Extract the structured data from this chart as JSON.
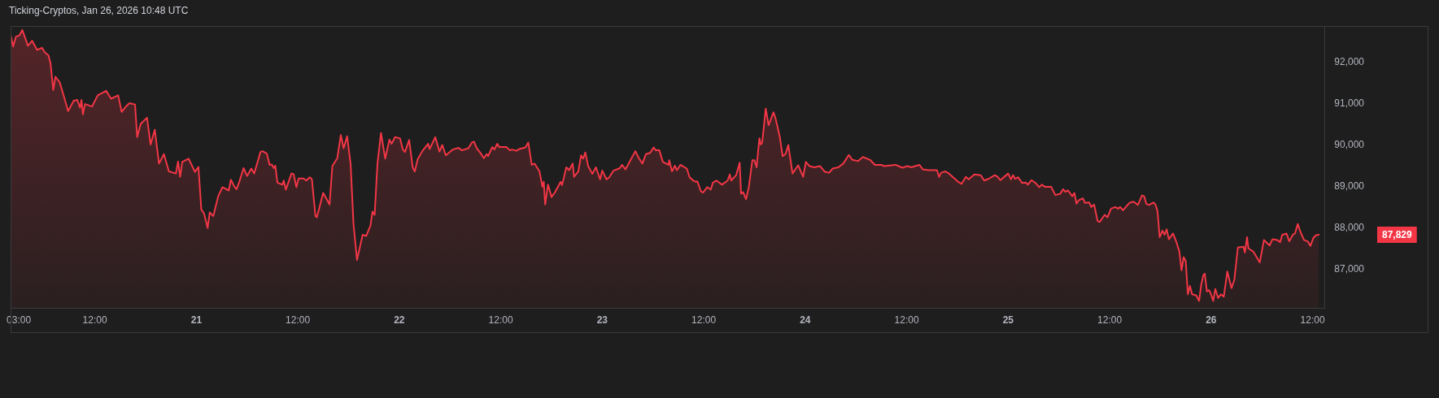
{
  "chart_data": {
    "type": "area",
    "title": "Ticking-Cryptos, Jan 26, 2026 10:48 UTC",
    "color": "#f23645",
    "x": [
      "2026-01-20T02:05",
      "2026-01-20T02:20",
      "2026-01-20T02:40",
      "2026-01-20T03:05",
      "2026-01-20T03:25",
      "2026-01-20T03:40",
      "2026-01-20T04:05",
      "2026-01-20T04:35",
      "2026-01-20T05:10",
      "2026-01-20T05:45",
      "2026-01-20T06:05",
      "2026-01-20T06:30",
      "2026-01-20T06:45",
      "2026-01-20T07:05",
      "2026-01-20T07:20",
      "2026-01-20T07:50",
      "2026-01-20T08:25",
      "2026-01-20T08:50",
      "2026-01-20T09:30",
      "2026-01-20T09:55",
      "2026-01-20T10:15",
      "2026-01-20T10:25",
      "2026-01-20T10:35",
      "2026-01-20T10:50",
      "2026-01-20T11:40",
      "2026-01-20T12:20",
      "2026-01-20T13:20",
      "2026-01-20T13:55",
      "2026-01-20T14:45",
      "2026-01-20T15:10",
      "2026-01-20T15:40",
      "2026-01-20T16:05",
      "2026-01-20T16:45",
      "2026-01-20T17:00",
      "2026-01-20T17:25",
      "2026-01-20T18:10",
      "2026-01-20T18:35",
      "2026-01-20T19:05",
      "2026-01-20T19:35",
      "2026-01-20T20:10",
      "2026-01-20T20:45",
      "2026-01-20T21:35",
      "2026-01-20T21:50",
      "2026-01-20T22:05",
      "2026-01-20T22:20",
      "2026-01-20T23:05",
      "2026-01-20T23:50",
      "2026-01-21T00:15",
      "2026-01-21T00:35",
      "2026-01-21T00:55",
      "2026-01-21T01:20",
      "2026-01-21T01:35",
      "2026-01-21T02:00",
      "2026-01-21T02:35",
      "2026-01-21T03:05",
      "2026-01-21T03:50",
      "2026-01-21T04:05",
      "2026-01-21T04:30",
      "2026-01-21T04:45",
      "2026-01-21T05:05",
      "2026-01-21T05:35",
      "2026-01-21T06:00",
      "2026-01-21T06:30",
      "2026-01-21T06:50",
      "2026-01-21T07:05",
      "2026-01-21T07:35",
      "2026-01-21T07:50",
      "2026-01-21T08:20",
      "2026-01-21T08:40",
      "2026-01-21T08:55",
      "2026-01-21T09:10",
      "2026-01-21T09:20",
      "2026-01-21T09:35",
      "2026-01-21T10:10",
      "2026-01-21T10:20",
      "2026-01-21T10:35",
      "2026-01-21T11:15",
      "2026-01-21T11:30",
      "2026-01-21T11:50",
      "2026-01-21T12:05",
      "2026-01-21T12:40",
      "2026-01-21T13:00",
      "2026-01-21T13:25",
      "2026-01-21T13:40",
      "2026-01-21T14:05",
      "2026-01-21T14:15",
      "2026-01-21T15:00",
      "2026-01-21T15:45",
      "2026-01-21T16:05",
      "2026-01-21T16:40",
      "2026-01-21T17:05",
      "2026-01-21T17:25",
      "2026-01-21T17:50",
      "2026-01-21T18:15",
      "2026-01-21T18:35",
      "2026-01-21T19:00",
      "2026-01-21T19:40",
      "2026-01-21T20:05",
      "2026-01-21T20:35",
      "2026-01-21T20:50",
      "2026-01-21T21:05",
      "2026-01-21T21:25",
      "2026-01-21T21:50",
      "2026-01-21T22:20",
      "2026-01-21T22:50",
      "2026-01-21T23:05",
      "2026-01-21T23:30",
      "2026-01-22T00:05",
      "2026-01-22T00:25",
      "2026-01-22T00:40",
      "2026-01-22T01:10",
      "2026-01-22T01:35",
      "2026-01-22T01:50",
      "2026-01-22T02:10",
      "2026-01-22T02:45",
      "2026-01-22T03:25",
      "2026-01-22T03:35",
      "2026-01-22T04:15",
      "2026-01-22T04:45",
      "2026-01-22T05:05",
      "2026-01-22T05:30",
      "2026-01-22T06:20",
      "2026-01-22T07:00",
      "2026-01-22T07:25",
      "2026-01-22T08:10",
      "2026-01-22T08:35",
      "2026-01-22T08:50",
      "2026-01-22T09:10",
      "2026-01-22T09:35",
      "2026-01-22T10:00",
      "2026-01-22T10:20",
      "2026-01-22T10:30",
      "2026-01-22T11:00",
      "2026-01-22T11:15",
      "2026-01-22T11:35",
      "2026-01-22T11:50",
      "2026-01-22T12:40",
      "2026-01-22T13:05",
      "2026-01-22T13:20",
      "2026-01-22T13:50",
      "2026-01-22T14:10",
      "2026-01-22T14:55",
      "2026-01-22T15:15",
      "2026-01-22T15:40",
      "2026-01-22T16:00",
      "2026-01-22T16:35",
      "2026-01-22T16:55",
      "2026-01-22T17:05",
      "2026-01-22T17:15",
      "2026-01-22T17:35",
      "2026-01-22T18:00",
      "2026-01-22T18:25",
      "2026-01-22T19:05",
      "2026-01-22T19:15",
      "2026-01-22T19:45",
      "2026-01-22T20:05",
      "2026-01-22T20:30",
      "2026-01-22T20:40",
      "2026-01-22T21:10",
      "2026-01-22T21:30",
      "2026-01-22T21:45",
      "2026-01-22T22:00",
      "2026-01-22T22:20",
      "2026-01-22T22:50",
      "2026-01-22T23:15",
      "2026-01-22T23:45",
      "2026-01-23T00:00",
      "2026-01-23T00:30",
      "2026-01-23T00:50",
      "2026-01-23T01:20",
      "2026-01-23T02:05",
      "2026-01-23T02:20",
      "2026-01-23T02:45",
      "2026-01-23T03:20",
      "2026-01-23T03:55",
      "2026-01-23T04:20",
      "2026-01-23T04:45",
      "2026-01-23T05:10",
      "2026-01-23T05:40",
      "2026-01-23T06:05",
      "2026-01-23T06:20",
      "2026-01-23T06:45",
      "2026-01-23T07:10",
      "2026-01-23T07:50",
      "2026-01-23T07:55",
      "2026-01-23T08:15",
      "2026-01-23T08:35",
      "2026-01-23T08:50",
      "2026-01-23T09:15",
      "2026-01-23T10:00",
      "2026-01-23T10:20",
      "2026-01-23T10:45",
      "2026-01-23T11:05",
      "2026-01-23T11:15",
      "2026-01-23T11:40",
      "2026-01-23T11:55",
      "2026-01-23T12:25",
      "2026-01-23T12:50",
      "2026-01-23T13:05",
      "2026-01-23T13:30",
      "2026-01-23T14:10",
      "2026-01-23T14:50",
      "2026-01-23T15:05",
      "2026-01-23T15:15",
      "2026-01-23T15:50",
      "2026-01-23T16:15",
      "2026-01-23T16:25",
      "2026-01-23T16:40",
      "2026-01-23T17:00",
      "2026-01-23T17:20",
      "2026-01-23T17:45",
      "2026-01-23T18:00",
      "2026-01-23T18:15",
      "2026-01-23T18:35",
      "2026-01-23T18:45",
      "2026-01-23T18:55",
      "2026-01-23T19:20",
      "2026-01-23T19:40",
      "2026-01-23T20:15",
      "2026-01-23T20:30",
      "2026-01-23T21:00",
      "2026-01-23T21:20",
      "2026-01-23T21:40",
      "2026-01-23T22:00",
      "2026-01-23T22:30",
      "2026-01-23T23:10",
      "2026-01-23T23:45",
      "2026-01-24T00:05",
      "2026-01-24T00:30",
      "2026-01-24T01:05",
      "2026-01-24T01:45",
      "2026-01-24T02:20",
      "2026-01-24T02:50",
      "2026-01-24T03:15",
      "2026-01-24T03:55",
      "2026-01-24T04:30",
      "2026-01-24T05:10",
      "2026-01-24T05:35",
      "2026-01-24T06:15",
      "2026-01-24T06:50",
      "2026-01-24T07:40",
      "2026-01-24T08:15",
      "2026-01-24T09:00",
      "2026-01-24T09:20",
      "2026-01-24T10:40",
      "2026-01-24T11:30",
      "2026-01-24T12:05",
      "2026-01-24T12:35",
      "2026-01-24T13:00",
      "2026-01-24T13:30",
      "2026-01-24T13:55",
      "2026-01-24T14:35",
      "2026-01-24T15:35",
      "2026-01-24T15:50",
      "2026-01-24T16:05",
      "2026-01-24T16:35",
      "2026-01-24T17:00",
      "2026-01-24T17:30",
      "2026-01-24T18:05",
      "2026-01-24T18:30",
      "2026-01-24T19:00",
      "2026-01-24T19:20",
      "2026-01-24T20:00",
      "2026-01-24T20:45",
      "2026-01-24T21:10",
      "2026-01-24T21:40",
      "2026-01-24T22:25",
      "2026-01-24T22:45",
      "2026-01-24T23:05",
      "2026-01-25T00:00",
      "2026-01-25T00:20",
      "2026-01-25T00:35",
      "2026-01-25T00:50",
      "2026-01-25T01:10",
      "2026-01-25T01:40",
      "2026-01-25T02:05",
      "2026-01-25T02:20",
      "2026-01-25T02:45",
      "2026-01-25T03:15",
      "2026-01-25T03:40",
      "2026-01-25T04:00",
      "2026-01-25T04:20",
      "2026-01-25T05:05",
      "2026-01-25T05:35",
      "2026-01-25T06:10",
      "2026-01-25T06:30",
      "2026-01-25T06:45",
      "2026-01-25T07:05",
      "2026-01-25T07:35",
      "2026-01-25T07:50",
      "2026-01-25T08:05",
      "2026-01-25T08:20",
      "2026-01-25T08:50",
      "2026-01-25T09:05",
      "2026-01-25T09:35",
      "2026-01-25T09:50",
      "2026-01-25T10:10",
      "2026-01-25T10:35",
      "2026-01-25T10:50",
      "2026-01-25T11:25",
      "2026-01-25T11:45",
      "2026-01-25T12:10",
      "2026-01-25T12:40",
      "2026-01-25T13:00",
      "2026-01-25T13:15",
      "2026-01-25T13:35",
      "2026-01-25T14:20",
      "2026-01-25T14:50",
      "2026-01-25T15:20",
      "2026-01-25T15:50",
      "2026-01-25T16:05",
      "2026-01-25T16:20",
      "2026-01-25T16:40",
      "2026-01-25T17:10",
      "2026-01-25T17:25",
      "2026-01-25T17:40",
      "2026-01-25T17:55",
      "2026-01-25T18:15",
      "2026-01-25T18:30",
      "2026-01-25T18:45",
      "2026-01-25T19:00",
      "2026-01-25T19:30",
      "2026-01-25T19:55",
      "2026-01-25T20:15",
      "2026-01-25T20:30",
      "2026-01-25T20:45",
      "2026-01-25T21:00",
      "2026-01-25T21:15",
      "2026-01-25T21:30",
      "2026-01-25T21:45",
      "2026-01-25T22:15",
      "2026-01-25T22:35",
      "2026-01-25T22:50",
      "2026-01-25T23:05",
      "2026-01-25T23:15",
      "2026-01-25T23:30",
      "2026-01-25T23:45",
      "2026-01-25T23:55",
      "2026-01-26T00:15",
      "2026-01-26T00:30",
      "2026-01-26T00:50",
      "2026-01-26T01:10",
      "2026-01-26T01:30",
      "2026-01-26T01:55",
      "2026-01-26T02:25",
      "2026-01-26T02:45",
      "2026-01-26T03:10",
      "2026-01-26T03:50",
      "2026-01-26T04:00",
      "2026-01-26T04:15",
      "2026-01-26T04:25",
      "2026-01-26T05:00",
      "2026-01-26T05:45",
      "2026-01-26T06:15",
      "2026-01-26T06:55",
      "2026-01-26T07:15",
      "2026-01-26T07:50",
      "2026-01-26T08:10",
      "2026-01-26T08:25",
      "2026-01-26T08:55",
      "2026-01-26T09:15",
      "2026-01-26T09:40",
      "2026-01-26T09:55",
      "2026-01-26T10:15",
      "2026-01-26T10:35",
      "2026-01-26T11:00",
      "2026-01-26T11:25",
      "2026-01-26T11:45",
      "2026-01-26T12:05",
      "2026-01-26T12:25",
      "2026-01-26T12:45"
    ],
    "values": [
      92620,
      92380,
      92620,
      92650,
      92780,
      92640,
      92400,
      92520,
      92300,
      92350,
      92240,
      92170,
      91980,
      91330,
      91650,
      91520,
      91120,
      90820,
      91070,
      91090,
      90900,
      91090,
      90740,
      90990,
      90930,
      91200,
      91310,
      91120,
      91200,
      90800,
      90930,
      91010,
      90980,
      90190,
      90510,
      90660,
      90010,
      90370,
      89550,
      89780,
      89360,
      89310,
      89600,
      89230,
      89590,
      89670,
      89350,
      89470,
      88440,
      88340,
      87990,
      88370,
      88280,
      88760,
      88980,
      88900,
      89160,
      88990,
      88930,
      89110,
      89440,
      89250,
      89430,
      89310,
      89480,
      89830,
      89850,
      89790,
      89520,
      89530,
      89440,
      89500,
      89090,
      89040,
      89140,
      88920,
      89310,
      89300,
      88980,
      89190,
      89190,
      89140,
      89220,
      89170,
      88280,
      88250,
      88840,
      88560,
      89490,
      89680,
      90240,
      89920,
      90210,
      89520,
      88090,
      87220,
      87830,
      87800,
      88050,
      88390,
      88310,
      89550,
      90290,
      89670,
      90130,
      90030,
      90190,
      90160,
      89890,
      89830,
      90120,
      89460,
      89360,
      89650,
      89860,
      90030,
      89900,
      90190,
      89840,
      90000,
      89750,
      89890,
      89930,
      89870,
      89920,
      90060,
      90080,
      89920,
      89810,
      89680,
      89780,
      89730,
      89950,
      89890,
      90030,
      89950,
      89950,
      89870,
      89890,
      89860,
      89900,
      89940,
      90060,
      89520,
      89550,
      89360,
      88990,
      89110,
      88560,
      89040,
      88740,
      88860,
      89110,
      89030,
      89460,
      89390,
      89550,
      89230,
      89360,
      89750,
      89670,
      89820,
      89490,
      89300,
      89460,
      89170,
      89380,
      89170,
      89220,
      89380,
      89440,
      89520,
      89410,
      89630,
      89850,
      89680,
      89550,
      89780,
      89810,
      89940,
      89870,
      89870,
      89590,
      89520,
      89630,
      89360,
      89500,
      89390,
      89520,
      89430,
      89220,
      89140,
      89110,
      89120,
      88880,
      88850,
      88980,
      88920,
      89090,
      89140,
      89040,
      89140,
      89290,
      89140,
      89270,
      89570,
      88820,
      88860,
      88690,
      88980,
      89630,
      89630,
      89460,
      90160,
      90010,
      90060,
      90880,
      90480,
      90790,
      90640,
      90190,
      89730,
      89780,
      90000,
      89310,
      89510,
      89230,
      89590,
      89490,
      89460,
      89490,
      89350,
      89330,
      89430,
      89460,
      89550,
      89760,
      89640,
      89610,
      89710,
      89640,
      89520,
      89520,
      89490,
      89520,
      89450,
      89490,
      89460,
      89490,
      89520,
      89410,
      89390,
      89390,
      89230,
      89330,
      89360,
      89310,
      89220,
      89110,
      89060,
      89230,
      89170,
      89290,
      89270,
      89140,
      89180,
      89270,
      89230,
      89150,
      89310,
      89170,
      89270,
      89180,
      89220,
      89080,
      89090,
      89040,
      89150,
      89080,
      88980,
      89040,
      88990,
      88990,
      88790,
      88820,
      88930,
      88870,
      88900,
      88760,
      88840,
      88580,
      88660,
      88710,
      88600,
      88610,
      88500,
      88560,
      88160,
      88140,
      88310,
      88250,
      88460,
      88500,
      88460,
      88500,
      88420,
      88600,
      88630,
      88550,
      88780,
      88760,
      88580,
      88550,
      88610,
      88560,
      88400,
      87770,
      87930,
      87830,
      87960,
      87720,
      87860,
      87640,
      87420,
      86970,
      87290,
      87190,
      86390,
      86590,
      86390,
      86360,
      86230,
      86620,
      86850,
      86890,
      86460,
      86490,
      86430,
      86230,
      86520,
      86300,
      86390,
      86330,
      86940,
      86540,
      86740,
      87520,
      87540,
      87400,
      87770,
      87500,
      87420,
      87160,
      87700,
      87570,
      87720,
      87700,
      87650,
      87830,
      87860,
      87670,
      87830,
      87860,
      88090,
      87890,
      87700,
      87670,
      87560,
      87750,
      87820,
      87829
    ],
    "xlim": [
      "2026-01-20T02:05",
      "2026-01-26T13:25"
    ],
    "xticks": [
      {
        "value": "2026-01-20T03:00",
        "label": "03:00"
      },
      {
        "value": "2026-01-20T12:00",
        "label": "12:00"
      },
      {
        "value": "2026-01-21",
        "label": "21"
      },
      {
        "value": "2026-01-21T12:00",
        "label": "12:00"
      },
      {
        "value": "2026-01-22",
        "label": "22"
      },
      {
        "value": "2026-01-22T12:00",
        "label": "12:00"
      },
      {
        "value": "2026-01-23",
        "label": "23"
      },
      {
        "value": "2026-01-23T12:00",
        "label": "12:00"
      },
      {
        "value": "2026-01-24",
        "label": "24"
      },
      {
        "value": "2026-01-24T12:00",
        "label": "12:00"
      },
      {
        "value": "2026-01-25",
        "label": "25"
      },
      {
        "value": "2026-01-25T12:00",
        "label": "12:00"
      },
      {
        "value": "2026-01-26",
        "label": "26"
      },
      {
        "value": "2026-01-26T12:00",
        "label": "12:00"
      }
    ],
    "ylim": [
      86050,
      92850
    ],
    "yticks": [
      {
        "value": 87000,
        "label": "87,000"
      },
      {
        "value": 88000,
        "label": "88,000"
      },
      {
        "value": 89000,
        "label": "89,000"
      },
      {
        "value": 90000,
        "label": "90,000"
      },
      {
        "value": 91000,
        "label": "91,000"
      },
      {
        "value": 92000,
        "label": "92,000"
      }
    ],
    "annotations": [
      "87,829"
    ]
  }
}
